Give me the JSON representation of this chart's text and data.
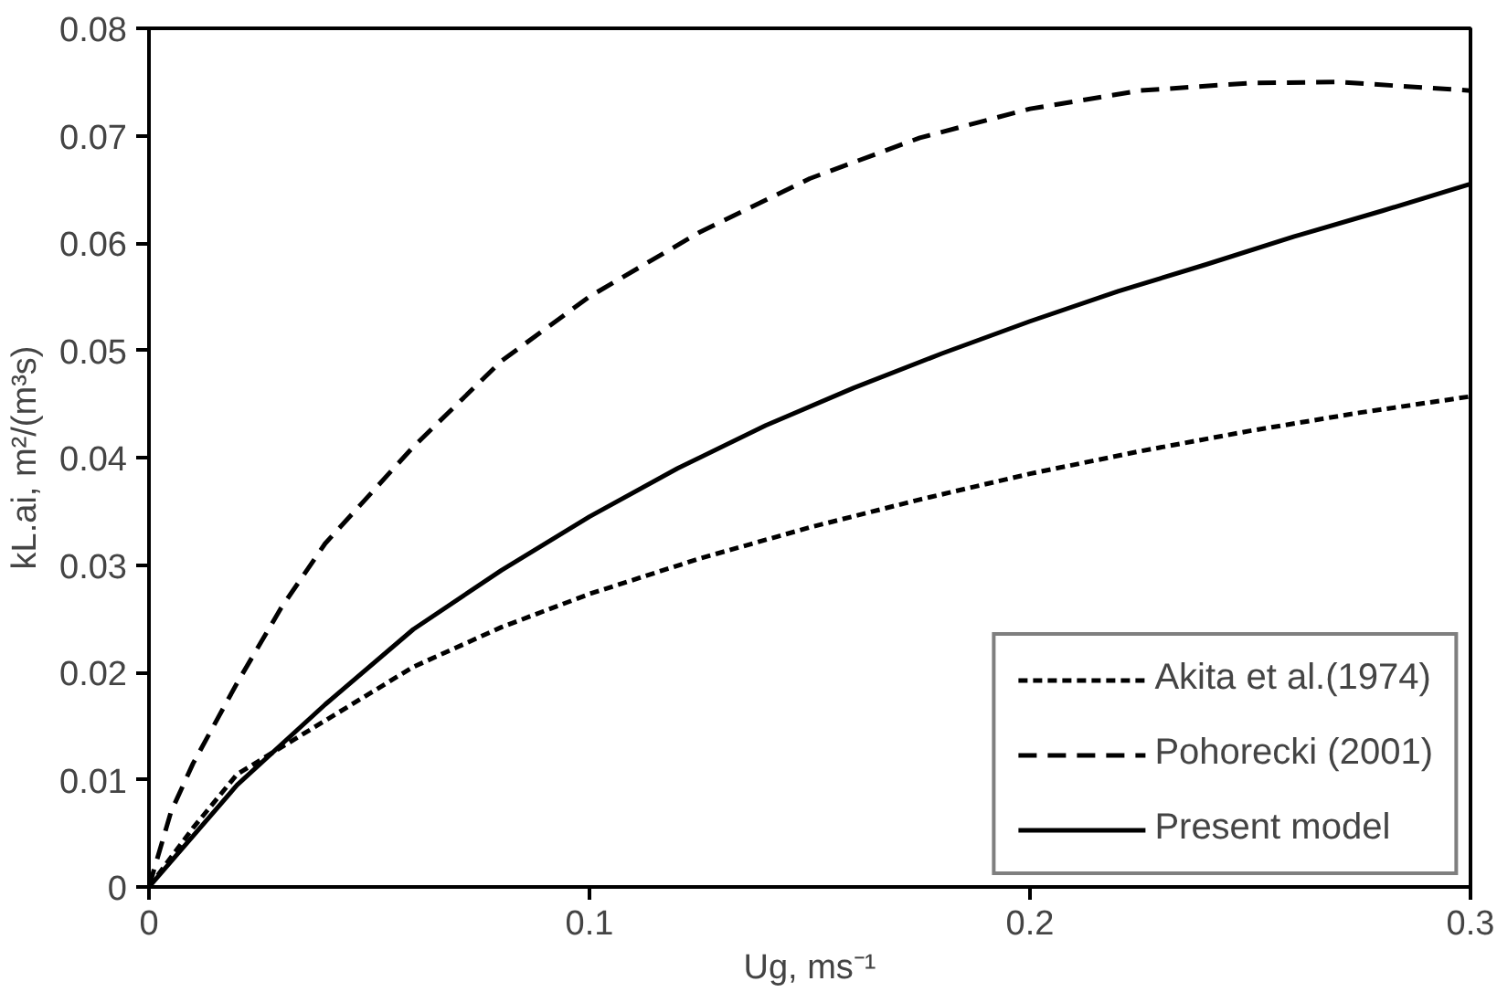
{
  "chart_data": {
    "type": "line",
    "xlabel": "Ug, ms⁻¹",
    "ylabel": "kL.ai, m²/(m³s)",
    "xlim": [
      0,
      0.3
    ],
    "ylim": [
      0,
      0.08
    ],
    "xticks": [
      0,
      0.1,
      0.2,
      0.3
    ],
    "yticks": [
      0,
      0.01,
      0.02,
      0.03,
      0.04,
      0.05,
      0.06,
      0.07,
      0.08
    ],
    "grid": false,
    "legend": "bottom right",
    "marker": "none",
    "series": [
      {
        "name": "Akita et al.(1974)",
        "color": "#000000",
        "line_style": "dotted",
        "x": [
          0,
          0.01,
          0.02,
          0.04,
          0.06,
          0.08,
          0.1,
          0.125,
          0.15,
          0.175,
          0.2,
          0.225,
          0.25,
          0.275,
          0.3
        ],
        "values": [
          0,
          0.0055,
          0.0105,
          0.0155,
          0.0205,
          0.0242,
          0.0273,
          0.0306,
          0.0335,
          0.0361,
          0.0385,
          0.0406,
          0.0425,
          0.0442,
          0.0457
        ]
      },
      {
        "name": "Pohorecki (2001)",
        "color": "#000000",
        "line_style": "dashed",
        "x": [
          0,
          0.005,
          0.01,
          0.02,
          0.03,
          0.04,
          0.06,
          0.08,
          0.1,
          0.125,
          0.15,
          0.175,
          0.2,
          0.225,
          0.25,
          0.27,
          0.3
        ],
        "values": [
          0,
          0.007,
          0.0115,
          0.019,
          0.026,
          0.032,
          0.041,
          0.049,
          0.055,
          0.061,
          0.066,
          0.0698,
          0.0725,
          0.0742,
          0.0749,
          0.075,
          0.0742
        ]
      },
      {
        "name": "Present model",
        "color": "#000000",
        "line_style": "solid",
        "x": [
          0,
          0.02,
          0.04,
          0.06,
          0.08,
          0.1,
          0.12,
          0.14,
          0.16,
          0.18,
          0.2,
          0.22,
          0.24,
          0.26,
          0.28,
          0.3
        ],
        "values": [
          0,
          0.0095,
          0.017,
          0.024,
          0.0295,
          0.0345,
          0.039,
          0.043,
          0.0465,
          0.0497,
          0.0527,
          0.0555,
          0.058,
          0.0606,
          0.063,
          0.0655
        ]
      }
    ]
  }
}
